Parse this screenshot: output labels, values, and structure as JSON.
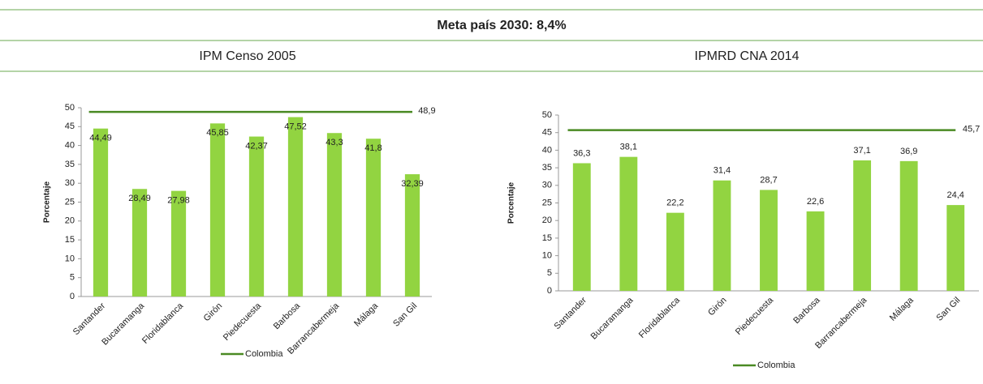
{
  "heading": "Meta país 2030: 8,4%",
  "chart_data": [
    {
      "type": "bar",
      "title": "IPM Censo 2005",
      "ylabel": "Porcentaje",
      "categories": [
        "Santander",
        "Bucaramanga",
        "Floridablanca",
        "Girón",
        "Piedecuesta",
        "Barbosa",
        "Barrancabermeja",
        "Málaga",
        "San Gil"
      ],
      "values": [
        44.49,
        28.49,
        27.98,
        45.85,
        42.37,
        47.52,
        43.3,
        41.8,
        32.39
      ],
      "value_labels": [
        "44,49",
        "28,49",
        "27,98",
        "45,85",
        "42,37",
        "47,52",
        "43,3",
        "41,8",
        "32,39"
      ],
      "label_position": "inside",
      "color": "#92d441",
      "series": [
        {
          "name": "Colombia",
          "color": "#4a8a23",
          "values": [
            48.9,
            48.9,
            48.9,
            48.9,
            48.9,
            48.9,
            48.9,
            48.9,
            48.9
          ],
          "value_labels": [
            null,
            null,
            null,
            null,
            null,
            null,
            null,
            null,
            "48,9"
          ]
        }
      ],
      "ylim": [
        0,
        50
      ],
      "yticks": [
        0,
        5,
        10,
        15,
        20,
        25,
        30,
        35,
        40,
        45,
        50
      ],
      "legend": "bottom"
    },
    {
      "type": "bar",
      "title": "IPMRD CNA 2014",
      "ylabel": "Porcentaje",
      "categories": [
        "Santander",
        "Bucaramanga",
        "Floridablanca",
        "Girón",
        "Piedecuesta",
        "Barbosa",
        "Barrancabermeja",
        "Málaga",
        "San Gil"
      ],
      "values": [
        36.3,
        38.1,
        22.2,
        31.4,
        28.7,
        22.6,
        37.1,
        36.9,
        24.4
      ],
      "value_labels": [
        "36,3",
        "38,1",
        "22,2",
        "31,4",
        "28,7",
        "22,6",
        "37,1",
        "36,9",
        "24,4"
      ],
      "label_position": "outside",
      "color": "#92d441",
      "series": [
        {
          "name": "Colombia",
          "color": "#4a8a23",
          "values": [
            45.7,
            45.7,
            45.7,
            45.7,
            45.7,
            45.7,
            45.7,
            45.7,
            45.7
          ],
          "value_labels": [
            null,
            null,
            null,
            null,
            null,
            null,
            null,
            null,
            "45,7"
          ]
        }
      ],
      "ylim": [
        0,
        50
      ],
      "yticks": [
        0,
        5,
        10,
        15,
        20,
        25,
        30,
        35,
        40,
        45,
        50
      ],
      "legend": "bottom"
    }
  ]
}
